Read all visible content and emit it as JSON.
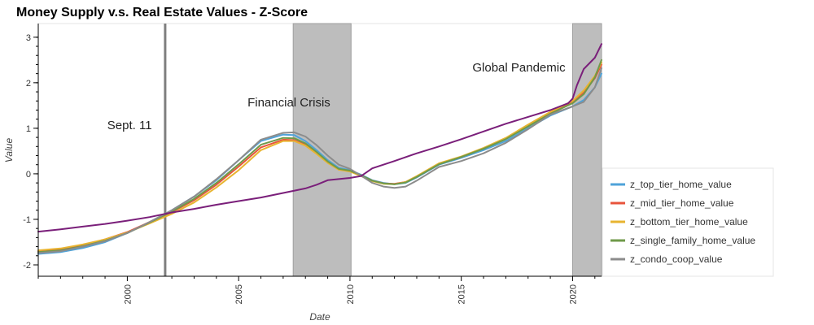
{
  "chart_data": {
    "type": "line",
    "title": "Money Supply v.s. Real Estate Values - Z-Score",
    "xlabel": "Date",
    "ylabel": "Value",
    "xlim": [
      1996.0,
      2021.3
    ],
    "ylim": [
      -2.25,
      3.3
    ],
    "x_ticks": [
      2000,
      2005,
      2010,
      2015,
      2020
    ],
    "y_ticks": [
      -2,
      -1,
      0,
      1,
      2,
      3
    ],
    "grid": false,
    "legend_position": "bottom-right",
    "shaded_regions": [
      {
        "start": 2007.45,
        "end": 2010.05
      },
      {
        "start": 2020.0,
        "end": 2021.3
      }
    ],
    "vertical_lines": [
      {
        "x": 2001.7
      }
    ],
    "annotations": [
      {
        "text": "Sept. 11",
        "x": 1999.1,
        "y": 0.98
      },
      {
        "text": "Financial Crisis",
        "x": 2005.4,
        "y": 1.48
      },
      {
        "text": "Global Pandemic",
        "x": 2015.5,
        "y": 2.25
      }
    ],
    "series": [
      {
        "name": "z_top_tier_home_value",
        "color": "#4fa3d9",
        "x": [
          1996,
          1997,
          1998,
          1999,
          2000,
          2001,
          2002,
          2003,
          2004,
          2005,
          2006,
          2007,
          2007.5,
          2008,
          2008.5,
          2009,
          2009.5,
          2010,
          2010.5,
          2011,
          2011.5,
          2012,
          2012.5,
          2013,
          2014,
          2015,
          2016,
          2017,
          2018,
          2019,
          2020,
          2020.5,
          2021,
          2021.3
        ],
        "y": [
          -1.76,
          -1.72,
          -1.63,
          -1.5,
          -1.3,
          -1.06,
          -0.8,
          -0.5,
          -0.14,
          0.3,
          0.72,
          0.86,
          0.85,
          0.72,
          0.52,
          0.3,
          0.13,
          0.08,
          -0.02,
          -0.14,
          -0.2,
          -0.23,
          -0.2,
          -0.08,
          0.2,
          0.35,
          0.52,
          0.72,
          1.0,
          1.28,
          1.48,
          1.62,
          1.9,
          2.2
        ]
      },
      {
        "name": "z_mid_tier_home_value",
        "color": "#e8543c",
        "x": [
          1996,
          1997,
          1998,
          1999,
          2000,
          2001,
          2002,
          2003,
          2004,
          2005,
          2006,
          2007,
          2007.5,
          2008,
          2008.5,
          2009,
          2009.5,
          2010,
          2010.5,
          2011,
          2011.5,
          2012,
          2012.5,
          2013,
          2014,
          2015,
          2016,
          2017,
          2018,
          2019,
          2020,
          2020.5,
          2021,
          2021.3
        ],
        "y": [
          -1.7,
          -1.66,
          -1.56,
          -1.44,
          -1.28,
          -1.06,
          -0.84,
          -0.58,
          -0.24,
          0.16,
          0.58,
          0.75,
          0.74,
          0.64,
          0.46,
          0.26,
          0.1,
          0.06,
          -0.04,
          -0.15,
          -0.21,
          -0.22,
          -0.18,
          -0.06,
          0.22,
          0.37,
          0.56,
          0.78,
          1.06,
          1.33,
          1.57,
          1.78,
          2.1,
          2.4
        ]
      },
      {
        "name": "z_bottom_tier_home_value",
        "color": "#e8b430",
        "x": [
          1996,
          1997,
          1998,
          1999,
          2000,
          2001,
          2002,
          2003,
          2004,
          2005,
          2006,
          2007,
          2007.5,
          2008,
          2008.5,
          2009,
          2009.5,
          2010,
          2010.5,
          2011,
          2011.5,
          2012,
          2012.5,
          2013,
          2014,
          2015,
          2016,
          2017,
          2018,
          2019,
          2020,
          2020.5,
          2021,
          2021.3
        ],
        "y": [
          -1.68,
          -1.64,
          -1.55,
          -1.44,
          -1.29,
          -1.09,
          -0.88,
          -0.63,
          -0.3,
          0.08,
          0.52,
          0.72,
          0.72,
          0.62,
          0.44,
          0.24,
          0.09,
          0.05,
          -0.05,
          -0.16,
          -0.22,
          -0.23,
          -0.18,
          -0.05,
          0.23,
          0.38,
          0.57,
          0.79,
          1.08,
          1.36,
          1.6,
          1.83,
          2.15,
          2.45
        ]
      },
      {
        "name": "z_single_family_home_value",
        "color": "#6f9a4a",
        "x": [
          1996,
          1997,
          1998,
          1999,
          2000,
          2001,
          2002,
          2003,
          2004,
          2005,
          2006,
          2007,
          2007.5,
          2008,
          2008.5,
          2009,
          2009.5,
          2010,
          2010.5,
          2011,
          2011.5,
          2012,
          2012.5,
          2013,
          2014,
          2015,
          2016,
          2017,
          2018,
          2019,
          2020,
          2020.5,
          2021,
          2021.3
        ],
        "y": [
          -1.72,
          -1.68,
          -1.59,
          -1.47,
          -1.3,
          -1.07,
          -0.83,
          -0.55,
          -0.2,
          0.21,
          0.64,
          0.79,
          0.78,
          0.67,
          0.48,
          0.27,
          0.11,
          0.07,
          -0.03,
          -0.15,
          -0.21,
          -0.23,
          -0.19,
          -0.07,
          0.21,
          0.37,
          0.55,
          0.76,
          1.04,
          1.32,
          1.55,
          1.75,
          2.12,
          2.5
        ]
      },
      {
        "name": "z_condo_coop_value",
        "color": "#8c8c8c",
        "x": [
          1996,
          1997,
          1998,
          1999,
          2000,
          2001,
          2002,
          2003,
          2004,
          2005,
          2006,
          2007,
          2007.5,
          2008,
          2008.5,
          2009,
          2009.5,
          2010,
          2010.5,
          2011,
          2011.5,
          2012,
          2012.5,
          2013,
          2014,
          2015,
          2016,
          2017,
          2018,
          2019,
          2020,
          2020.5,
          2021,
          2021.3
        ],
        "y": [
          -1.74,
          -1.7,
          -1.6,
          -1.48,
          -1.3,
          -1.06,
          -0.8,
          -0.5,
          -0.12,
          0.3,
          0.75,
          0.9,
          0.91,
          0.82,
          0.63,
          0.4,
          0.2,
          0.11,
          -0.04,
          -0.2,
          -0.28,
          -0.31,
          -0.28,
          -0.15,
          0.15,
          0.28,
          0.45,
          0.68,
          0.98,
          1.3,
          1.48,
          1.58,
          1.9,
          2.32
        ]
      },
      {
        "name": "",
        "color": "#7a1f7a",
        "x": [
          1996,
          1997,
          1998,
          1999,
          2000,
          2001,
          2002,
          2003,
          2004,
          2005,
          2006,
          2007,
          2008,
          2008.5,
          2009,
          2010,
          2010.5,
          2011,
          2012,
          2013,
          2014,
          2015,
          2016,
          2017,
          2018,
          2019,
          2019.8,
          2020.0,
          2020.2,
          2020.5,
          2021,
          2021.3
        ],
        "y": [
          -1.27,
          -1.22,
          -1.16,
          -1.1,
          -1.03,
          -0.95,
          -0.85,
          -0.77,
          -0.68,
          -0.6,
          -0.52,
          -0.42,
          -0.32,
          -0.24,
          -0.14,
          -0.09,
          -0.05,
          0.12,
          0.28,
          0.45,
          0.6,
          0.76,
          0.93,
          1.1,
          1.25,
          1.4,
          1.55,
          1.65,
          1.95,
          2.3,
          2.55,
          2.85
        ]
      }
    ]
  }
}
